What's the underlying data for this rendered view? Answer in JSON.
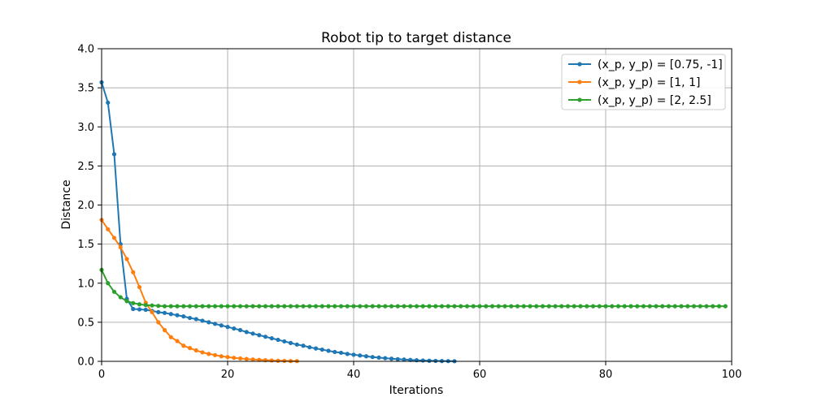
{
  "chart_data": {
    "type": "line",
    "title": "Robot tip to target distance",
    "xlabel": "Iterations",
    "ylabel": "Distance",
    "xlim": [
      0,
      100
    ],
    "ylim": [
      0,
      4.0
    ],
    "xticks": [
      "0",
      "20",
      "40",
      "60",
      "80",
      "100"
    ],
    "yticks": [
      "0.0",
      "0.5",
      "1.0",
      "1.5",
      "2.0",
      "2.5",
      "3.0",
      "3.5",
      "4.0"
    ],
    "grid": true,
    "legend_position": "top-right",
    "series": [
      {
        "name": "(x_p, y_p) = [0.75, -1]",
        "color": "#1f77b4",
        "x_start": 0,
        "values": [
          3.57,
          3.31,
          2.65,
          1.5,
          0.8,
          0.67,
          0.665,
          0.66,
          0.645,
          0.63,
          0.62,
          0.605,
          0.59,
          0.575,
          0.555,
          0.54,
          0.52,
          0.5,
          0.48,
          0.46,
          0.44,
          0.42,
          0.4,
          0.375,
          0.355,
          0.335,
          0.315,
          0.295,
          0.275,
          0.255,
          0.235,
          0.215,
          0.2,
          0.18,
          0.165,
          0.15,
          0.135,
          0.12,
          0.11,
          0.095,
          0.085,
          0.075,
          0.065,
          0.055,
          0.048,
          0.04,
          0.034,
          0.028,
          0.023,
          0.018,
          0.014,
          0.011,
          0.008,
          0.006,
          0.004,
          0.003,
          0.002
        ]
      },
      {
        "name": "(x_p, y_p) = [1, 1]",
        "color": "#ff7f0e",
        "x_start": 0,
        "values": [
          1.81,
          1.69,
          1.58,
          1.46,
          1.31,
          1.14,
          0.95,
          0.75,
          0.63,
          0.5,
          0.4,
          0.31,
          0.26,
          0.2,
          0.17,
          0.14,
          0.115,
          0.095,
          0.08,
          0.065,
          0.055,
          0.045,
          0.037,
          0.03,
          0.024,
          0.019,
          0.015,
          0.011,
          0.008,
          0.006,
          0.004,
          0.003
        ]
      },
      {
        "name": "(x_p, y_p) = [2, 2.5]",
        "color": "#2ca02c",
        "x_start": 0,
        "head_values": [
          1.17,
          1.0,
          0.89,
          0.82,
          0.77,
          0.745,
          0.73,
          0.72,
          0.715,
          0.71
        ],
        "tail_value": 0.705,
        "last_x": 99
      }
    ]
  }
}
